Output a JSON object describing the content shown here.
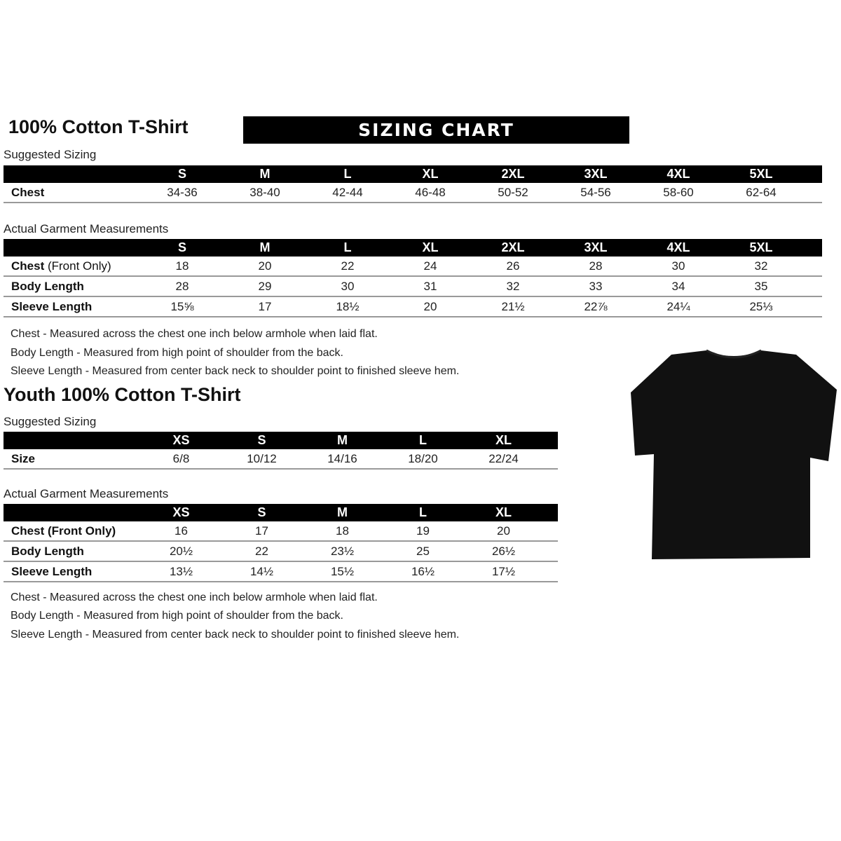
{
  "adult": {
    "title": "100% Cotton T-Shirt",
    "banner": "SIZING CHART",
    "suggested_label": "Suggested Sizing",
    "sizes": [
      "S",
      "M",
      "L",
      "XL",
      "2XL",
      "3XL",
      "4XL",
      "5XL"
    ],
    "suggested_rows": [
      {
        "label": "Chest",
        "values": [
          "34-36",
          "38-40",
          "42-44",
          "46-48",
          "50-52",
          "54-56",
          "58-60",
          "62-64"
        ]
      }
    ],
    "actual_label": "Actual Garment Measurements",
    "actual_rows": [
      {
        "label": "Chest",
        "label_extra": "(Front Only)",
        "values": [
          "18",
          "20",
          "22",
          "24",
          "26",
          "28",
          "30",
          "32"
        ]
      },
      {
        "label": "Body Length",
        "values": [
          "28",
          "29",
          "30",
          "31",
          "32",
          "33",
          "34",
          "35"
        ]
      },
      {
        "label": "Sleeve Length",
        "values": [
          "15⅝",
          "17",
          "18½",
          "20",
          "21½",
          "22⅞",
          "24¼",
          "25⅓"
        ]
      }
    ],
    "notes": [
      "Chest - Measured across the chest one inch below armhole when laid flat.",
      "Body Length - Measured from high point of shoulder from the back.",
      "Sleeve Length - Measured from center back neck to shoulder point to finished sleeve hem."
    ]
  },
  "youth": {
    "title": "Youth 100% Cotton T-Shirt",
    "suggested_label": "Suggested Sizing",
    "sizes": [
      "XS",
      "S",
      "M",
      "L",
      "XL"
    ],
    "suggested_rows": [
      {
        "label": "Size",
        "values": [
          "6/8",
          "10/12",
          "14/16",
          "18/20",
          "22/24"
        ]
      }
    ],
    "actual_label": "Actual Garment Measurements",
    "actual_rows": [
      {
        "label": "Chest (Front Only)",
        "values": [
          "16",
          "17",
          "18",
          "19",
          "20"
        ]
      },
      {
        "label": "Body Length",
        "values": [
          "20½",
          "22",
          "23½",
          "25",
          "26½"
        ]
      },
      {
        "label": "Sleeve Length",
        "values": [
          "13½",
          "14½",
          "15½",
          "16½",
          "17½"
        ]
      }
    ],
    "notes": [
      "Chest - Measured across the chest one inch below armhole when laid flat.",
      "Body Length - Measured from high point of shoulder from the back.",
      "Sleeve Length - Measured from center back neck to shoulder point to finished sleeve hem."
    ]
  },
  "image": {
    "icon": "tshirt-icon",
    "color": "#111111"
  }
}
